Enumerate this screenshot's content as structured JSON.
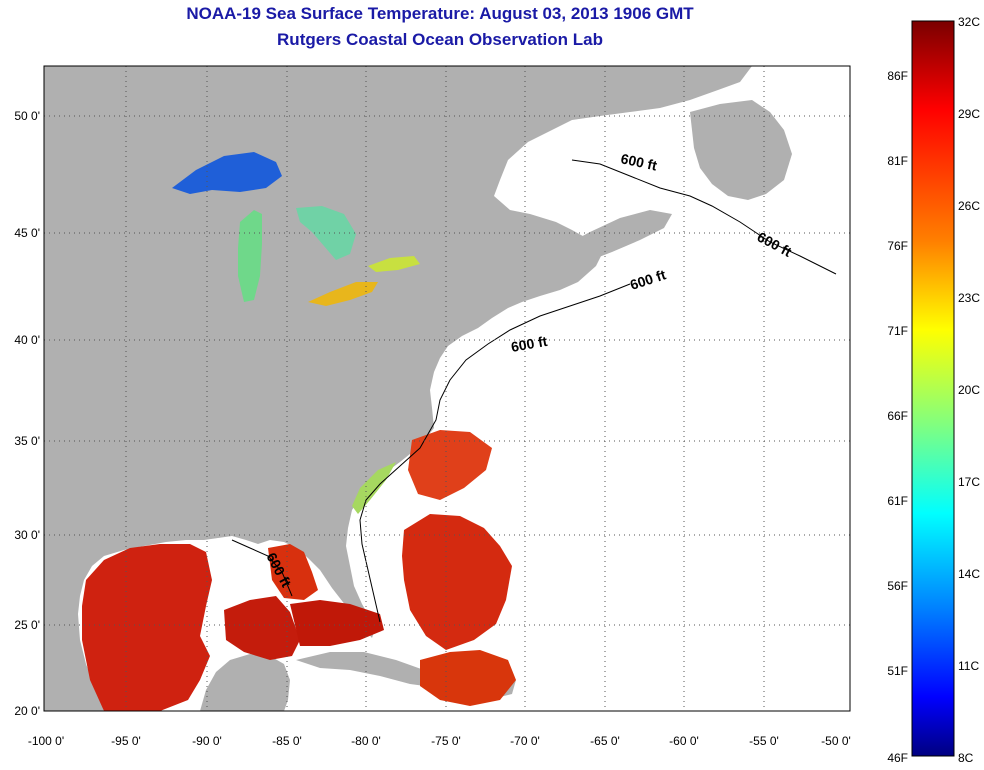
{
  "header": {
    "title": "NOAA-19 Sea Surface Temperature:  August 03, 2013 1906 GMT",
    "subtitle": "Rutgers Coastal Ocean Observation Lab"
  },
  "map": {
    "lon_ticks": [
      "-100 0'",
      "-95 0'",
      "-90 0'",
      "-85 0'",
      "-80 0'",
      "-75 0'",
      "-70 0'",
      "-65 0'",
      "-60 0'",
      "-55 0'",
      "-50 0'"
    ],
    "lat_ticks": [
      "50 0'",
      "45 0'",
      "40 0'",
      "35 0'",
      "30 0'",
      "25 0'",
      "20 0'"
    ],
    "contour_label": "600 ft",
    "colors": {
      "land": "#b0b0b0",
      "ocean_no_data": "#ffffff",
      "warm": "#d42a10",
      "hot": "#b81808"
    }
  },
  "colorbar": {
    "celsius_labels": [
      "32C",
      "29C",
      "26C",
      "23C",
      "20C",
      "17C",
      "14C",
      "11C",
      "8C"
    ],
    "fahrenheit_labels": [
      "86F",
      "81F",
      "76F",
      "71F",
      "66F",
      "61F",
      "56F",
      "51F",
      "46F"
    ],
    "colors": [
      "#7a0000",
      "#ff0000",
      "#ff8000",
      "#ffff00",
      "#80ff80",
      "#00ffff",
      "#0080ff",
      "#0000ff",
      "#000080"
    ]
  }
}
